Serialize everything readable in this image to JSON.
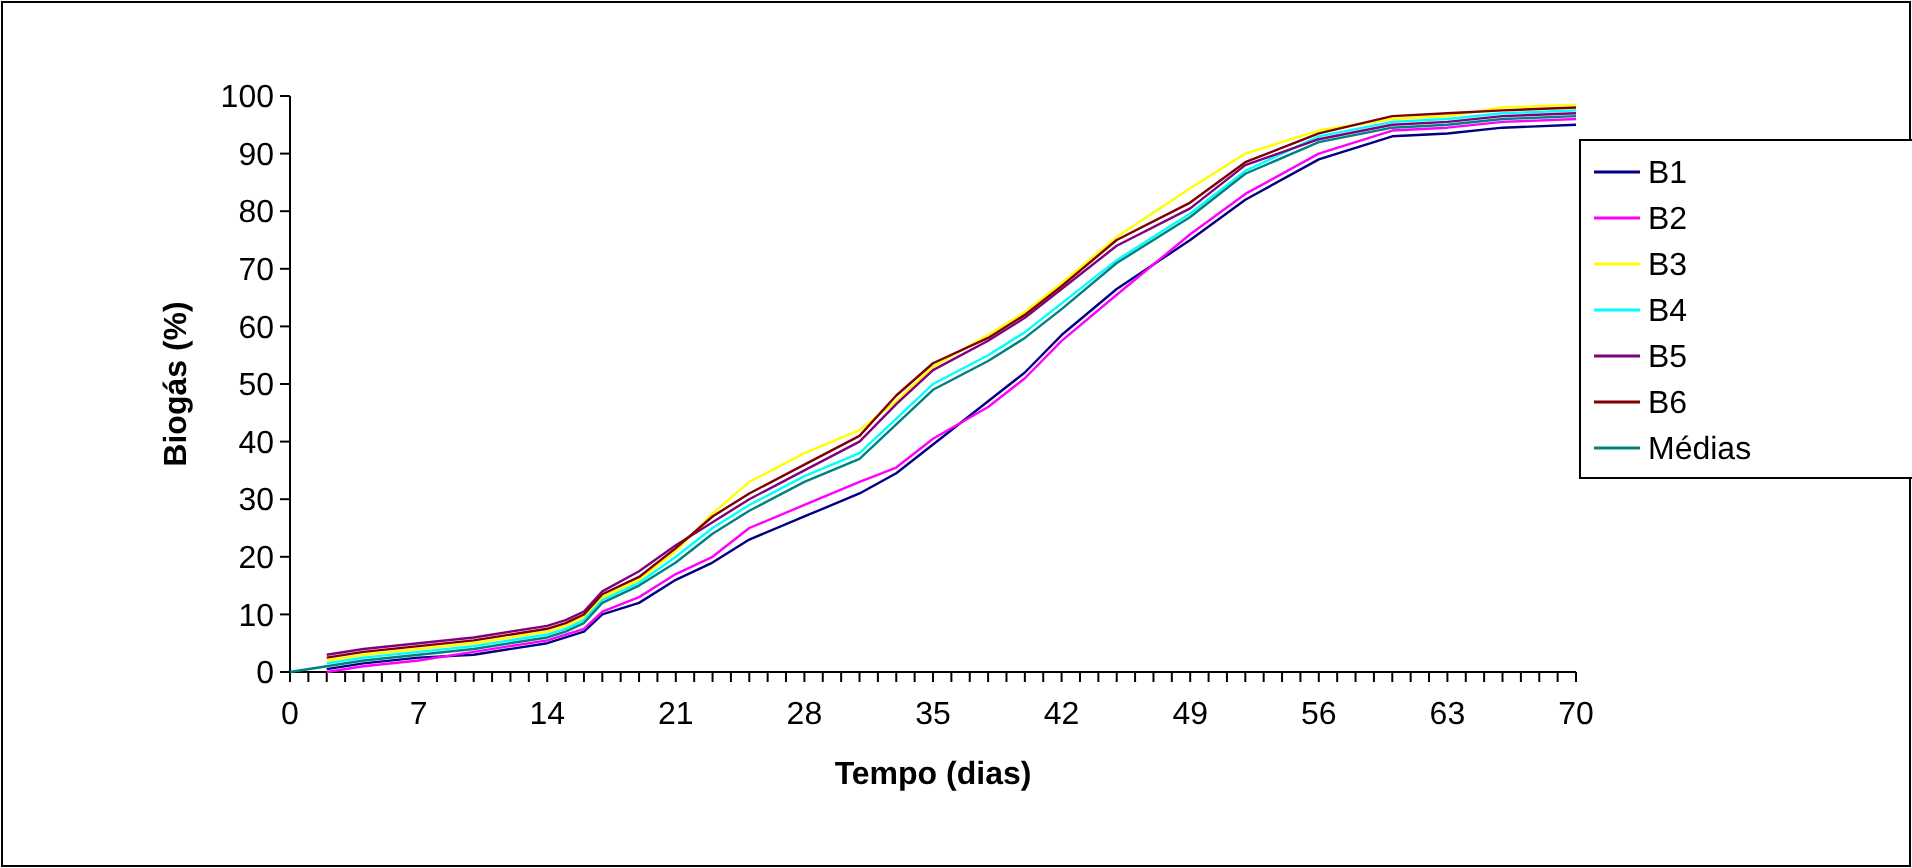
{
  "chart_data": {
    "type": "line",
    "xlabel": "Tempo (dias)",
    "ylabel": "Biogás (%)",
    "x": [
      0,
      2,
      4,
      7,
      10,
      14,
      15,
      16,
      17,
      19,
      21,
      23,
      25,
      28,
      31,
      33,
      35,
      38,
      40,
      42,
      45,
      49,
      52,
      56,
      60,
      63,
      66,
      70
    ],
    "xlim": [
      0,
      70
    ],
    "xticks": [
      0,
      {
        "value": 1,
        "label": null
      },
      {
        "value": 2,
        "label": null
      },
      {
        "value": 3,
        "label": null
      },
      {
        "value": 4,
        "label": null
      },
      {
        "value": 5,
        "label": null
      },
      {
        "value": 6,
        "label": null
      },
      7,
      {
        "value": 8,
        "label": null
      },
      {
        "value": 9,
        "label": null
      },
      {
        "value": 10,
        "label": null
      },
      {
        "value": 11,
        "label": null
      },
      {
        "value": 12,
        "label": null
      },
      {
        "value": 13,
        "label": null
      },
      14,
      {
        "value": 15,
        "label": null
      },
      {
        "value": 16,
        "label": null
      },
      {
        "value": 17,
        "label": null
      },
      {
        "value": 18,
        "label": null
      },
      {
        "value": 19,
        "label": null
      },
      {
        "value": 20,
        "label": null
      },
      21,
      {
        "value": 22,
        "label": null
      },
      {
        "value": 23,
        "label": null
      },
      {
        "value": 24,
        "label": null
      },
      {
        "value": 25,
        "label": null
      },
      {
        "value": 26,
        "label": null
      },
      {
        "value": 27,
        "label": null
      },
      28,
      {
        "value": 29,
        "label": null
      },
      {
        "value": 30,
        "label": null
      },
      {
        "value": 31,
        "label": null
      },
      {
        "value": 32,
        "label": null
      },
      {
        "value": 33,
        "label": null
      },
      {
        "value": 34,
        "label": null
      },
      35,
      {
        "value": 36,
        "label": null
      },
      {
        "value": 37,
        "label": null
      },
      {
        "value": 38,
        "label": null
      },
      {
        "value": 39,
        "label": null
      },
      {
        "value": 40,
        "label": null
      },
      {
        "value": 41,
        "label": null
      },
      42,
      {
        "value": 43,
        "label": null
      },
      {
        "value": 44,
        "label": null
      },
      {
        "value": 45,
        "label": null
      },
      {
        "value": 46,
        "label": null
      },
      {
        "value": 47,
        "label": null
      },
      {
        "value": 48,
        "label": null
      },
      49,
      {
        "value": 50,
        "label": null
      },
      {
        "value": 51,
        "label": null
      },
      {
        "value": 52,
        "label": null
      },
      {
        "value": 53,
        "label": null
      },
      {
        "value": 54,
        "label": null
      },
      {
        "value": 55,
        "label": null
      },
      56,
      {
        "value": 57,
        "label": null
      },
      {
        "value": 58,
        "label": null
      },
      {
        "value": 59,
        "label": null
      },
      {
        "value": 60,
        "label": null
      },
      {
        "value": 61,
        "label": null
      },
      {
        "value": 62,
        "label": null
      },
      63,
      {
        "value": 64,
        "label": null
      },
      {
        "value": 65,
        "label": null
      },
      {
        "value": 66,
        "label": null
      },
      {
        "value": 67,
        "label": null
      },
      {
        "value": 68,
        "label": null
      },
      {
        "value": 69,
        "label": null
      },
      70
    ],
    "ylim": [
      0,
      100
    ],
    "yticks": [
      0,
      10,
      20,
      30,
      40,
      50,
      60,
      70,
      80,
      90,
      100
    ],
    "grid": false,
    "legend": "right",
    "marker": "none",
    "line_style": "solid",
    "series": [
      {
        "name": "B1",
        "color": "#000080",
        "values": [
          null,
          0.5,
          1.5,
          2.5,
          3,
          5,
          6,
          7,
          10,
          12,
          16,
          19,
          23,
          27,
          31,
          34.5,
          39.5,
          47,
          52,
          58.5,
          66.5,
          75,
          82,
          89,
          93,
          93.5,
          94.5,
          95
        ]
      },
      {
        "name": "B2",
        "color": "#ff00ff",
        "values": [
          null,
          0,
          1,
          2,
          3.5,
          5.5,
          6.5,
          7.5,
          10.5,
          13,
          17,
          20,
          25,
          29,
          33,
          35.5,
          40.5,
          46,
          51,
          57.5,
          65.5,
          76,
          83,
          90,
          94,
          94.5,
          95.5,
          96
        ]
      },
      {
        "name": "B3",
        "color": "#ffff00",
        "values": [
          null,
          2,
          3,
          4,
          5,
          7,
          8,
          9.5,
          13,
          16,
          21,
          27.5,
          33,
          38,
          42,
          47,
          53,
          58.5,
          62.5,
          67.5,
          75.5,
          84,
          90,
          94,
          96,
          96.5,
          98,
          98.5
        ]
      },
      {
        "name": "B4",
        "color": "#00ffff",
        "values": [
          null,
          1.5,
          2.5,
          3.5,
          4.5,
          6.5,
          7.5,
          9,
          12.5,
          15.5,
          20,
          25,
          29,
          34,
          38,
          44,
          50,
          55,
          59,
          64,
          71.5,
          79.6,
          87,
          93,
          95.5,
          96,
          97,
          97.5
        ]
      },
      {
        "name": "B5",
        "color": "#800080",
        "values": [
          null,
          3,
          4,
          5,
          6,
          8,
          9,
          10.5,
          14,
          17.5,
          22,
          26,
          30,
          35,
          40,
          46.5,
          52.4,
          57.5,
          61.5,
          66.5,
          74,
          80.5,
          88,
          92.5,
          95,
          95.5,
          96.5,
          97
        ]
      },
      {
        "name": "B6",
        "color": "#800000",
        "values": [
          null,
          2.5,
          3.5,
          4.5,
          5.5,
          7.5,
          8.5,
          10,
          13.5,
          16.5,
          21.5,
          27,
          31,
          36,
          41,
          48,
          53.6,
          58,
          62,
          67,
          75,
          81.5,
          88.5,
          93.5,
          96.5,
          97,
          97.5,
          98
        ]
      },
      {
        "name": "Médias",
        "color": "#008080",
        "values": [
          0,
          1,
          2,
          3,
          4,
          6,
          7,
          8.5,
          12,
          15,
          19,
          24,
          28,
          33,
          37,
          43,
          49,
          54,
          58,
          63,
          71,
          79,
          86.5,
          92,
          94.5,
          95,
          96,
          96.5
        ]
      }
    ]
  }
}
